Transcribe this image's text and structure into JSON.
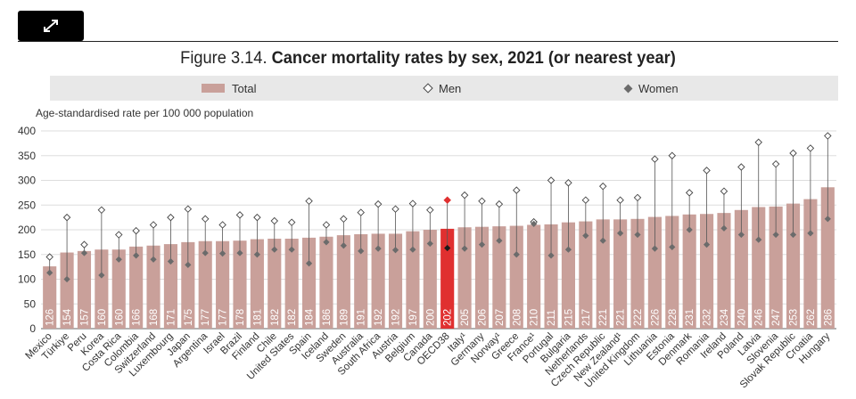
{
  "toolbar": {
    "expand_icon": "expand-arrows-icon"
  },
  "chart_data": {
    "type": "bar",
    "title_prefix": "Figure 3.14.",
    "title": "Cancer mortality rates by sex, 2021 (or nearest year)",
    "ylabel": "Age-standardised rate per 100 000 population",
    "ylim": [
      0,
      400
    ],
    "yticks": [
      0,
      50,
      100,
      150,
      200,
      250,
      300,
      350,
      400
    ],
    "highlight": "OECD38",
    "colors": {
      "bar": "#c9a09a",
      "highlight": "#e03030",
      "men_marker": "#ffffff",
      "women_marker": "#6b6b6b"
    },
    "legend": {
      "total": "Total",
      "men": "Men",
      "women": "Women"
    },
    "categories": [
      "Mexico",
      "Türkiye",
      "Peru",
      "Korea",
      "Costa Rica",
      "Colombia",
      "Switzerland",
      "Luxembourg",
      "Japan",
      "Argentina",
      "Israel",
      "Brazil",
      "Finland",
      "Chile",
      "United States",
      "Spain",
      "Iceland",
      "Sweden",
      "Australia",
      "South Africa",
      "Austria",
      "Belgium",
      "Canada",
      "OECD38",
      "Italy¹",
      "Germany",
      "Norway¹",
      "Greece",
      "France¹",
      "Portugal",
      "Bulgaria",
      "Netherlands",
      "Czech Republic",
      "New Zealand¹",
      "United Kingdom",
      "Lithuania",
      "Estonia",
      "Denmark",
      "Romania",
      "Ireland",
      "Poland",
      "Latvia",
      "Slovenia",
      "Slovak Republic",
      "Croatia",
      "Hungary"
    ],
    "series": [
      {
        "name": "Total",
        "values": [
          126,
          154,
          157,
          160,
          160,
          166,
          168,
          171,
          175,
          177,
          177,
          178,
          181,
          182,
          182,
          184,
          186,
          189,
          191,
          192,
          192,
          197,
          200,
          202,
          205,
          206,
          207,
          208,
          210,
          211,
          215,
          217,
          221,
          221,
          222,
          226,
          228,
          231,
          232,
          234,
          240,
          246,
          247,
          253,
          262,
          286
        ]
      },
      {
        "name": "Men",
        "values": [
          145,
          225,
          170,
          240,
          190,
          198,
          210,
          225,
          242,
          222,
          210,
          230,
          225,
          218,
          215,
          258,
          210,
          222,
          235,
          252,
          242,
          253,
          240,
          260,
          270,
          258,
          252,
          280,
          216,
          300,
          295,
          260,
          288,
          260,
          265,
          343,
          350,
          275,
          320,
          278,
          327,
          377,
          333,
          355,
          365,
          390
        ]
      },
      {
        "name": "Women",
        "values": [
          113,
          100,
          153,
          108,
          140,
          148,
          140,
          136,
          129,
          153,
          152,
          153,
          150,
          160,
          160,
          132,
          175,
          168,
          157,
          162,
          159,
          160,
          172,
          163,
          162,
          170,
          178,
          150,
          212,
          148,
          160,
          188,
          178,
          193,
          190,
          162,
          165,
          200,
          170,
          203,
          190,
          180,
          190,
          190,
          193,
          222
        ]
      }
    ]
  }
}
